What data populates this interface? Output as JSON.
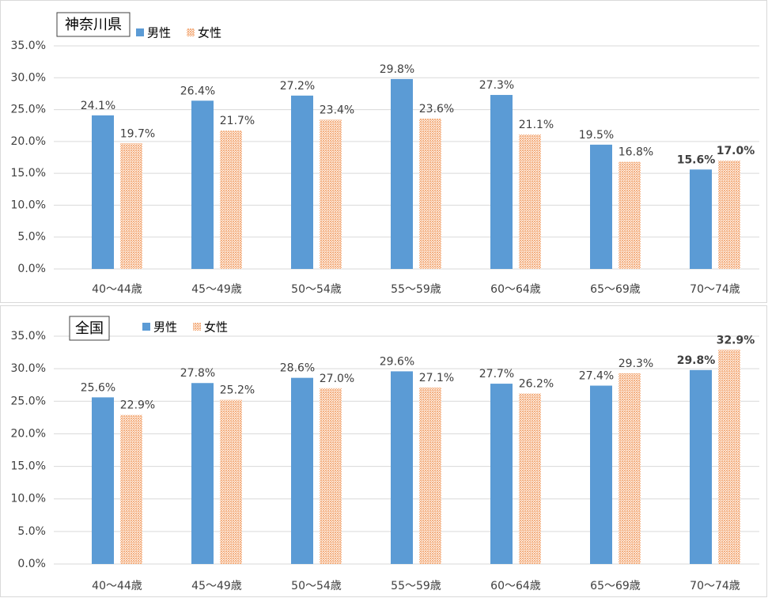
{
  "chart_data": [
    {
      "type": "bar",
      "title": "神奈川県",
      "categories": [
        "40～44歳",
        "45～49歳",
        "50～54歳",
        "55～59歳",
        "60～64歳",
        "65～69歳",
        "70～74歳"
      ],
      "series": [
        {
          "name": "男性",
          "color": "#5b9bd5",
          "values": [
            24.1,
            26.4,
            27.2,
            29.8,
            27.3,
            19.5,
            15.6
          ],
          "value_labels": [
            "24.1%",
            "26.4%",
            "27.2%",
            "29.8%",
            "27.3%",
            "19.5%",
            "15.6%"
          ]
        },
        {
          "name": "女性",
          "color": "#f4b183",
          "fill_pattern": "dots",
          "values": [
            19.7,
            21.7,
            23.4,
            23.6,
            21.1,
            16.8,
            17.0
          ],
          "value_labels": [
            "19.7%",
            "21.7%",
            "23.4%",
            "23.6%",
            "21.1%",
            "16.8%",
            "17.0%"
          ]
        }
      ],
      "ylim": [
        0,
        35
      ],
      "yticks": [
        {
          "value": 0,
          "label": "0.0%"
        },
        {
          "value": 5,
          "label": "5.0%"
        },
        {
          "value": 10,
          "label": "10.0%"
        },
        {
          "value": 15,
          "label": "15.0%"
        },
        {
          "value": 20,
          "label": "20.0%"
        },
        {
          "value": 25,
          "label": "25.0%"
        },
        {
          "value": 30,
          "label": "30.0%"
        },
        {
          "value": 35,
          "label": "35.0%"
        }
      ],
      "grid": true
    },
    {
      "type": "bar",
      "title": "全国",
      "categories": [
        "40～44歳",
        "45～49歳",
        "50～54歳",
        "55～59歳",
        "60～64歳",
        "65～69歳",
        "70～74歳"
      ],
      "series": [
        {
          "name": "男性",
          "color": "#5b9bd5",
          "values": [
            25.6,
            27.8,
            28.6,
            29.6,
            27.7,
            27.4,
            29.8
          ],
          "value_labels": [
            "25.6%",
            "27.8%",
            "28.6%",
            "29.6%",
            "27.7%",
            "27.4%",
            "29.8%"
          ]
        },
        {
          "name": "女性",
          "color": "#f4b183",
          "fill_pattern": "dots",
          "values": [
            22.9,
            25.2,
            27.0,
            27.1,
            26.2,
            29.3,
            32.9
          ],
          "value_labels": [
            "22.9%",
            "25.2%",
            "27.0%",
            "27.1%",
            "26.2%",
            "29.3%",
            "32.9%"
          ]
        }
      ],
      "ylim": [
        0,
        35
      ],
      "yticks": [
        {
          "value": 0,
          "label": "0.0%"
        },
        {
          "value": 5,
          "label": "5.0%"
        },
        {
          "value": 10,
          "label": "10.0%"
        },
        {
          "value": 15,
          "label": "15.0%"
        },
        {
          "value": 20,
          "label": "20.0%"
        },
        {
          "value": 25,
          "label": "25.0%"
        },
        {
          "value": 30,
          "label": "30.0%"
        },
        {
          "value": 35,
          "label": "35.0%"
        }
      ],
      "grid": true
    }
  ]
}
